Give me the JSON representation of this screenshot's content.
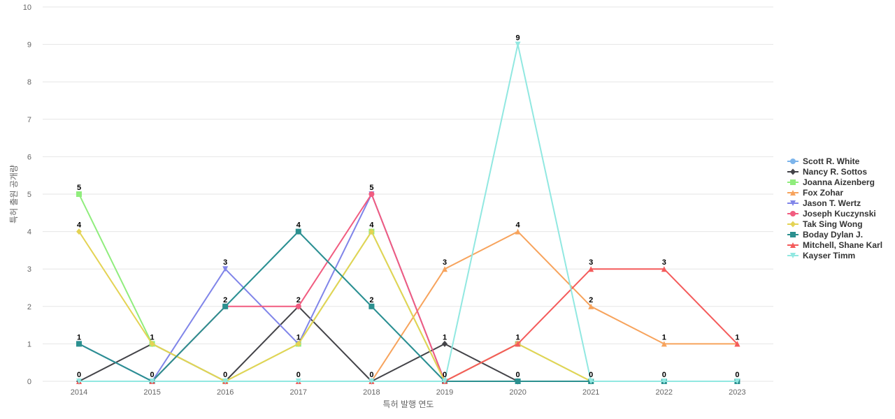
{
  "chart_data": {
    "type": "line",
    "xlabel": "특허 발행 연도",
    "ylabel": "특허 출원 공개량",
    "ylim": [
      0,
      10
    ],
    "y_ticks": [
      0,
      1,
      2,
      3,
      4,
      5,
      6,
      7,
      8,
      9,
      10
    ],
    "categories": [
      "2014",
      "2015",
      "2016",
      "2017",
      "2018",
      "2019",
      "2020",
      "2021",
      "2022",
      "2023"
    ],
    "grid": true,
    "legend_position": "right",
    "series": [
      {
        "name": "Scott R. White",
        "color": "#7cb5ec",
        "marker": "circle",
        "values": [
          1,
          0,
          2,
          4,
          2,
          0,
          0,
          0,
          null,
          null
        ]
      },
      {
        "name": "Nancy R. Sottos",
        "color": "#434348",
        "marker": "diamond",
        "values": [
          0,
          1,
          0,
          2,
          0,
          1,
          0,
          0,
          null,
          null
        ]
      },
      {
        "name": "Joanna Aizenberg",
        "color": "#90ed7d",
        "marker": "square",
        "values": [
          5,
          1,
          0,
          1,
          4,
          0,
          1,
          0,
          null,
          null
        ]
      },
      {
        "name": "Fox Zohar",
        "color": "#f7a35c",
        "marker": "triangle",
        "values": [
          null,
          null,
          null,
          null,
          0,
          3,
          4,
          2,
          1,
          1
        ]
      },
      {
        "name": "Jason T. Wertz",
        "color": "#8085e9",
        "marker": "triangle-down",
        "values": [
          1,
          0,
          3,
          1,
          5,
          0,
          null,
          null,
          null,
          null
        ]
      },
      {
        "name": "Joseph Kuczynski",
        "color": "#f15c80",
        "marker": "circle",
        "values": [
          null,
          0,
          2,
          2,
          5,
          0,
          1,
          null,
          null,
          null
        ]
      },
      {
        "name": "Tak Sing Wong",
        "color": "#e4d354",
        "marker": "diamond",
        "values": [
          4,
          1,
          0,
          1,
          4,
          0,
          1,
          0,
          null,
          null
        ]
      },
      {
        "name": "Boday Dylan J.",
        "color": "#2b908f",
        "marker": "square",
        "values": [
          1,
          0,
          2,
          4,
          2,
          0,
          0,
          0,
          0,
          0
        ]
      },
      {
        "name": "Mitchell, Shane Karl",
        "color": "#f45b5b",
        "marker": "triangle",
        "values": [
          0,
          0,
          0,
          0,
          0,
          0,
          1,
          3,
          3,
          1
        ]
      },
      {
        "name": "Kayser Timm",
        "color": "#91e8e1",
        "marker": "triangle-down",
        "values": [
          0,
          0,
          0,
          0,
          0,
          0,
          9,
          0,
          0,
          0
        ]
      }
    ],
    "data_labels": [
      {
        "x": "2014",
        "y": 5,
        "text": "5"
      },
      {
        "x": "2014",
        "y": 4,
        "text": "4"
      },
      {
        "x": "2014",
        "y": 1,
        "text": "1"
      },
      {
        "x": "2014",
        "y": 0,
        "text": "0"
      },
      {
        "x": "2015",
        "y": 1,
        "text": "1"
      },
      {
        "x": "2015",
        "y": 0,
        "text": "0"
      },
      {
        "x": "2016",
        "y": 3,
        "text": "3"
      },
      {
        "x": "2016",
        "y": 2,
        "text": "2"
      },
      {
        "x": "2016",
        "y": 0,
        "text": "0"
      },
      {
        "x": "2017",
        "y": 4,
        "text": "4"
      },
      {
        "x": "2017",
        "y": 2,
        "text": "2"
      },
      {
        "x": "2017",
        "y": 1,
        "text": "1"
      },
      {
        "x": "2017",
        "y": 0,
        "text": "0"
      },
      {
        "x": "2018",
        "y": 5,
        "text": "5"
      },
      {
        "x": "2018",
        "y": 4,
        "text": "4"
      },
      {
        "x": "2018",
        "y": 2,
        "text": "2"
      },
      {
        "x": "2018",
        "y": 0,
        "text": "0"
      },
      {
        "x": "2019",
        "y": 3,
        "text": "3"
      },
      {
        "x": "2019",
        "y": 1,
        "text": "1"
      },
      {
        "x": "2019",
        "y": 0,
        "text": "0"
      },
      {
        "x": "2020",
        "y": 9,
        "text": "9"
      },
      {
        "x": "2020",
        "y": 4,
        "text": "4"
      },
      {
        "x": "2020",
        "y": 1,
        "text": "1"
      },
      {
        "x": "2020",
        "y": 0,
        "text": "0"
      },
      {
        "x": "2021",
        "y": 3,
        "text": "3"
      },
      {
        "x": "2021",
        "y": 2,
        "text": "2"
      },
      {
        "x": "2021",
        "y": 0,
        "text": "0"
      },
      {
        "x": "2022",
        "y": 3,
        "text": "3"
      },
      {
        "x": "2022",
        "y": 1,
        "text": "1"
      },
      {
        "x": "2022",
        "y": 0,
        "text": "0"
      },
      {
        "x": "2023",
        "y": 1,
        "text": "1"
      },
      {
        "x": "2023",
        "y": 0,
        "text": "0"
      }
    ]
  }
}
